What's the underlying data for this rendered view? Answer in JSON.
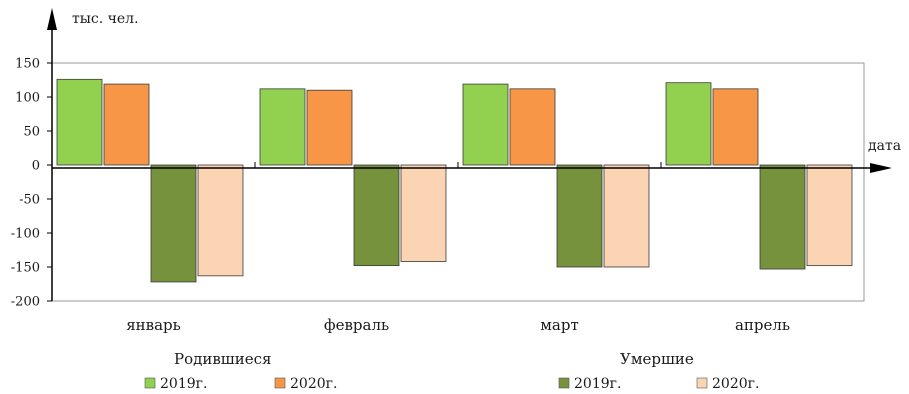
{
  "chart_data": {
    "type": "bar",
    "y_unit_label": "тыс. чел.",
    "x_axis_label": "дата",
    "categories": [
      "январь",
      "февраль",
      "март",
      "апрель"
    ],
    "ylim": [
      -200,
      150
    ],
    "yticks": [
      150,
      100,
      50,
      0,
      -50,
      -100,
      -150,
      -200
    ],
    "grid": false,
    "legend_groups": [
      {
        "title": "Родившиеся",
        "items": [
          "2019г.",
          "2020г."
        ]
      },
      {
        "title": "Умершие",
        "items": [
          "2019г.",
          "2020г."
        ]
      }
    ],
    "series": [
      {
        "group": "Родившиеся",
        "name": "2019г.",
        "color": "#92d050",
        "values": [
          126,
          112,
          119,
          121
        ]
      },
      {
        "group": "Родившиеся",
        "name": "2020г.",
        "color": "#f79646",
        "values": [
          119,
          110,
          112,
          112
        ]
      },
      {
        "group": "Умершие",
        "name": "2019г.",
        "color": "#76923c",
        "values": [
          -172,
          -148,
          -150,
          -153
        ]
      },
      {
        "group": "Умершие",
        "name": "2020г.",
        "color": "#fbd4b4",
        "values": [
          -163,
          -142,
          -150,
          -148
        ]
      }
    ]
  }
}
